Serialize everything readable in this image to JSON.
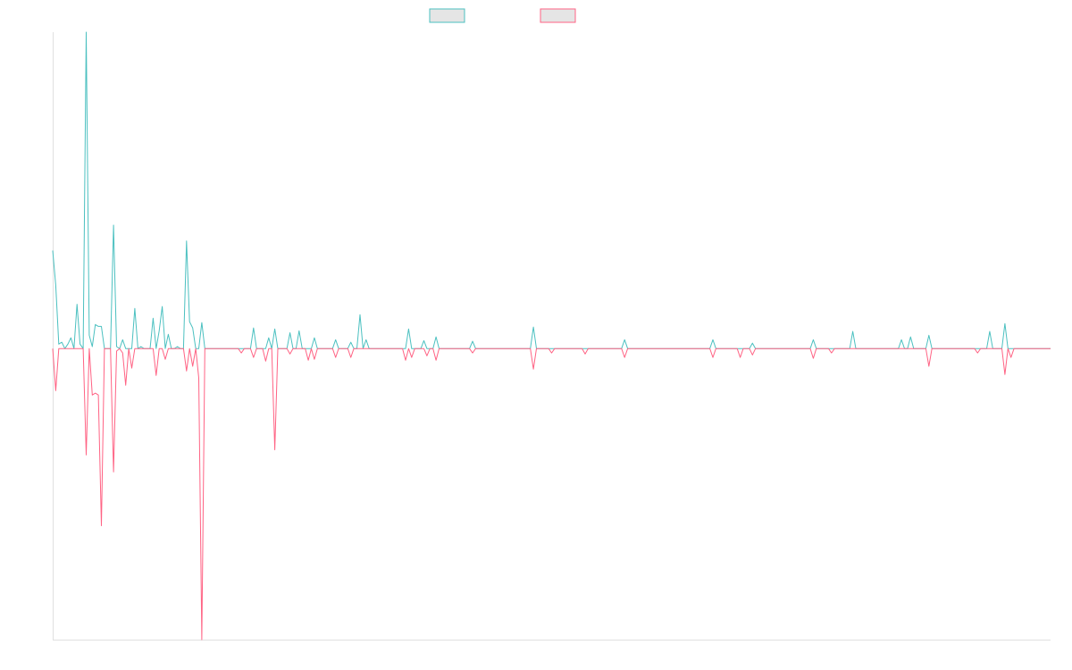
{
  "chart_data": {
    "type": "line",
    "title": "",
    "xlabel": "",
    "ylabel": "",
    "xlim": [
      0,
      328
    ],
    "ylim": [
      -92,
      100
    ],
    "grid": false,
    "legend": "top-center",
    "baseline": 0,
    "series": [
      {
        "color": "#4bc0c0",
        "fill": "#e5e5e5",
        "points": [
          [
            0,
            31
          ],
          [
            1,
            20
          ],
          [
            2,
            1.4
          ],
          [
            3,
            2
          ],
          [
            5,
            1.4
          ],
          [
            6,
            3.4
          ],
          [
            8,
            14
          ],
          [
            9,
            1.4
          ],
          [
            11,
            100
          ],
          [
            12,
            4.2
          ],
          [
            13,
            0.6
          ],
          [
            14,
            7.6
          ],
          [
            15,
            7
          ],
          [
            16,
            7
          ],
          [
            20,
            39
          ],
          [
            21,
            0.6
          ],
          [
            23,
            2.8
          ],
          [
            27,
            12.7
          ],
          [
            29,
            0.6
          ],
          [
            33,
            9.6
          ],
          [
            35,
            5.6
          ],
          [
            36,
            13.3
          ],
          [
            38,
            4.5
          ],
          [
            41,
            0.6
          ],
          [
            44,
            34
          ],
          [
            45,
            8.5
          ],
          [
            46,
            6.5
          ],
          [
            49,
            8.2
          ],
          [
            66,
            6.5
          ],
          [
            71,
            3.4
          ],
          [
            73,
            6.2
          ],
          [
            78,
            5
          ],
          [
            81,
            5.6
          ],
          [
            86,
            3.4
          ],
          [
            93,
            2.8
          ],
          [
            98,
            2
          ],
          [
            101,
            10.7
          ],
          [
            103,
            2.8
          ],
          [
            117,
            6.2
          ],
          [
            122,
            2.5
          ],
          [
            126,
            3.7
          ],
          [
            138,
            2.3
          ],
          [
            158,
            6.8
          ],
          [
            188,
            2.8
          ],
          [
            217,
            2.8
          ],
          [
            230,
            1.7
          ],
          [
            250,
            2.8
          ],
          [
            263,
            5.4
          ],
          [
            279,
            2.8
          ],
          [
            282,
            3.7
          ],
          [
            288,
            4.2
          ],
          [
            308,
            5.4
          ],
          [
            313,
            7.9
          ]
        ]
      },
      {
        "color": "#ff6384",
        "fill": "#e5e5e5",
        "points": [
          [
            1,
            -13.3
          ],
          [
            11,
            -33.6
          ],
          [
            13,
            -14.7
          ],
          [
            14,
            -14.1
          ],
          [
            15,
            -14.7
          ],
          [
            16,
            -56
          ],
          [
            20,
            -39
          ],
          [
            21,
            -0.8
          ],
          [
            23,
            -1.4
          ],
          [
            24,
            -11.6
          ],
          [
            26,
            -6.2
          ],
          [
            34,
            -8.5
          ],
          [
            37,
            -3.4
          ],
          [
            44,
            -7.1
          ],
          [
            46,
            -5.6
          ],
          [
            48,
            -9.3
          ],
          [
            49,
            -92
          ],
          [
            62,
            -1.4
          ],
          [
            66,
            -2.8
          ],
          [
            70,
            -4
          ],
          [
            73,
            -32
          ],
          [
            78,
            -1.7
          ],
          [
            84,
            -3.7
          ],
          [
            86,
            -3.4
          ],
          [
            93,
            -2.8
          ],
          [
            98,
            -2.8
          ],
          [
            116,
            -3.7
          ],
          [
            118,
            -2.8
          ],
          [
            123,
            -2.3
          ],
          [
            126,
            -3.7
          ],
          [
            138,
            -1.4
          ],
          [
            158,
            -6.5
          ],
          [
            164,
            -1.4
          ],
          [
            175,
            -1.7
          ],
          [
            188,
            -2.8
          ],
          [
            217,
            -2.8
          ],
          [
            226,
            -2.8
          ],
          [
            230,
            -2
          ],
          [
            250,
            -3.1
          ],
          [
            256,
            -1.4
          ],
          [
            288,
            -5.6
          ],
          [
            304,
            -1.4
          ],
          [
            313,
            -8.2
          ],
          [
            315,
            -2.8
          ]
        ]
      }
    ]
  }
}
